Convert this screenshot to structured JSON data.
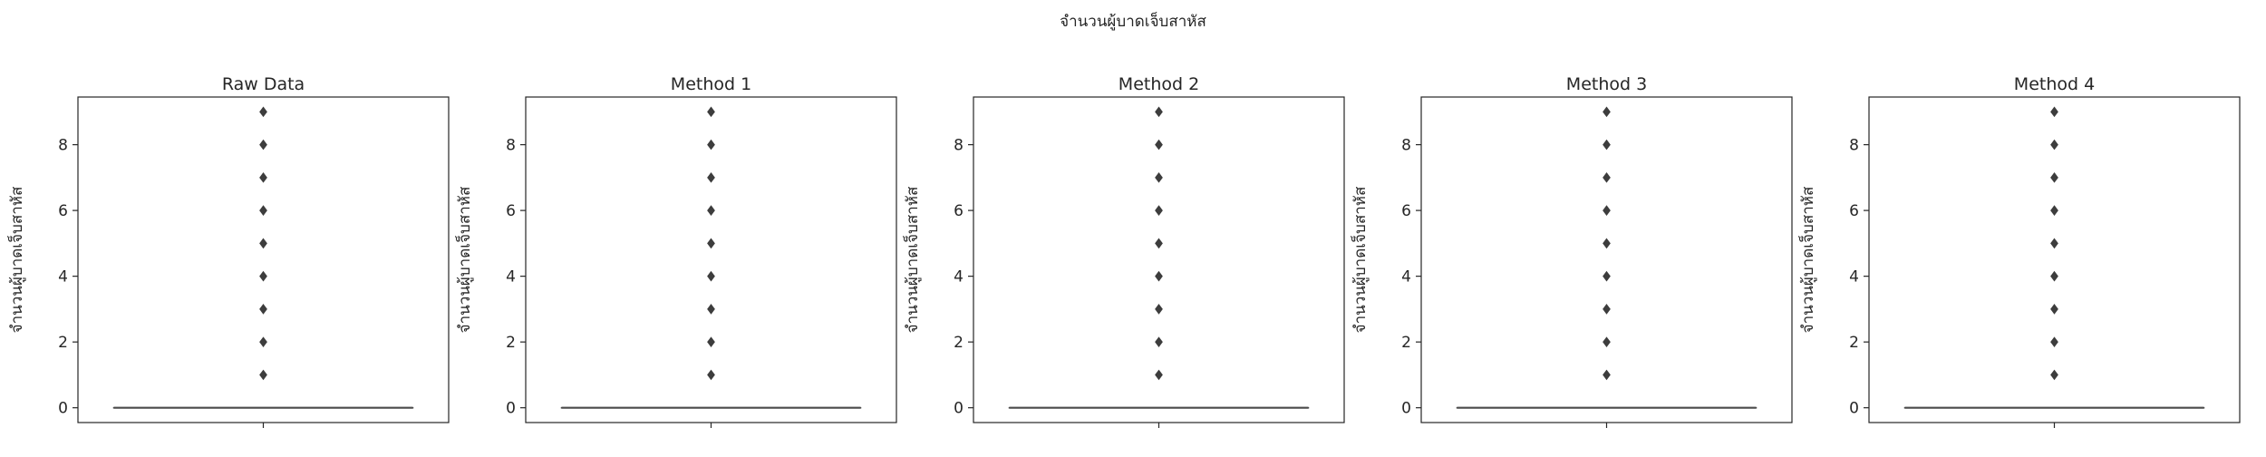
{
  "figure": {
    "suptitle": "จำนวนผู้บาดเจ็บสาหัส"
  },
  "colors": {
    "box": "#4c4c4c",
    "outlier": "#3d3d3d",
    "axis": "#262626",
    "background": "#ffffff"
  },
  "chart_data": [
    {
      "type": "box",
      "title": "Raw Data",
      "xlabel": "",
      "ylabel": "จำนวนผู้บาดเจ็บสาหัส",
      "ylim": [
        -0.45,
        9.45
      ],
      "yticks": [
        0,
        2,
        4,
        6,
        8
      ],
      "grid": false,
      "box": {
        "q1": 0,
        "median": 0,
        "q3": 0,
        "whisker_low": 0,
        "whisker_high": 0
      },
      "outliers": [
        1,
        2,
        3,
        4,
        5,
        6,
        7,
        8,
        9
      ]
    },
    {
      "type": "box",
      "title": "Method 1",
      "xlabel": "",
      "ylabel": "จำนวนผู้บาดเจ็บสาหัส",
      "ylim": [
        -0.45,
        9.45
      ],
      "yticks": [
        0,
        2,
        4,
        6,
        8
      ],
      "grid": false,
      "box": {
        "q1": 0,
        "median": 0,
        "q3": 0,
        "whisker_low": 0,
        "whisker_high": 0
      },
      "outliers": [
        1,
        2,
        3,
        4,
        5,
        6,
        7,
        8,
        9
      ]
    },
    {
      "type": "box",
      "title": "Method 2",
      "xlabel": "",
      "ylabel": "จำนวนผู้บาดเจ็บสาหัส",
      "ylim": [
        -0.45,
        9.45
      ],
      "yticks": [
        0,
        2,
        4,
        6,
        8
      ],
      "grid": false,
      "box": {
        "q1": 0,
        "median": 0,
        "q3": 0,
        "whisker_low": 0,
        "whisker_high": 0
      },
      "outliers": [
        1,
        2,
        3,
        4,
        5,
        6,
        7,
        8,
        9
      ]
    },
    {
      "type": "box",
      "title": "Method 3",
      "xlabel": "",
      "ylabel": "จำนวนผู้บาดเจ็บสาหัส",
      "ylim": [
        -0.45,
        9.45
      ],
      "yticks": [
        0,
        2,
        4,
        6,
        8
      ],
      "grid": false,
      "box": {
        "q1": 0,
        "median": 0,
        "q3": 0,
        "whisker_low": 0,
        "whisker_high": 0
      },
      "outliers": [
        1,
        2,
        3,
        4,
        5,
        6,
        7,
        8,
        9
      ]
    },
    {
      "type": "box",
      "title": "Method 4",
      "xlabel": "",
      "ylabel": "จำนวนผู้บาดเจ็บสาหัส",
      "ylim": [
        -0.45,
        9.45
      ],
      "yticks": [
        0,
        2,
        4,
        6,
        8
      ],
      "grid": false,
      "box": {
        "q1": 0,
        "median": 0,
        "q3": 0,
        "whisker_low": 0,
        "whisker_high": 0
      },
      "outliers": [
        1,
        2,
        3,
        4,
        5,
        6,
        7,
        8,
        9
      ]
    }
  ]
}
